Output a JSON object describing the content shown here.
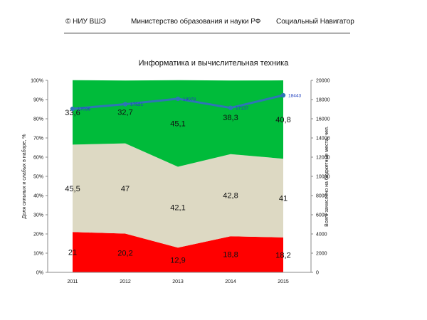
{
  "header": {
    "copyright": "© НИУ ВШЭ",
    "ministry": "Министерство образования и науки РФ",
    "navigator": "Социальный Навигатор"
  },
  "colors": {
    "weak": "#ff0000",
    "middle": "#ddd9c3",
    "strong": "#00bb3a",
    "enrolled": "#2e75b6",
    "enrolled_label": "#1f3fbf"
  },
  "chart_data": {
    "type": "area",
    "title": "Информатика и вычислительная техника",
    "x": [
      "2011",
      "2012",
      "2013",
      "2014",
      "2015"
    ],
    "ylabel_left": "Доля сильных и слабых в наборе, %",
    "ylabel_right": "Всего зачислено на бюджетные места, чел.",
    "yticks_left": [
      "0%",
      "10%",
      "20%",
      "30%",
      "40%",
      "50%",
      "60%",
      "70%",
      "80%",
      "90%",
      "100%"
    ],
    "yticks_right": [
      "0",
      "2000",
      "4000",
      "6000",
      "8000",
      "10000",
      "12000",
      "14000",
      "16000",
      "18000",
      "20000"
    ],
    "ylim_left": [
      0,
      100
    ],
    "ylim_right": [
      0,
      20000
    ],
    "stacked": true,
    "series": [
      {
        "values": [
          21,
          20.2,
          12.9,
          18.8,
          18.2
        ],
        "labels": [
          "21",
          "20,2",
          "12,9",
          "18,8",
          "18,2"
        ],
        "color": "#ff0000"
      },
      {
        "values": [
          45.5,
          47,
          42.1,
          42.8,
          41
        ],
        "labels": [
          "45,5",
          "47",
          "42,1",
          "42,8",
          "41"
        ],
        "color": "#ddd9c3"
      },
      {
        "values": [
          33.6,
          32.7,
          45.1,
          38.3,
          40.8
        ],
        "labels": [
          "33,6",
          "32,7",
          "45,1",
          "38,3",
          "40,8"
        ],
        "color": "#00bb3a"
      }
    ],
    "line_series": {
      "axis": "right",
      "values": [
        17036,
        17521,
        18078,
        17137,
        18443
      ],
      "labels": [
        "17036",
        "17521",
        "18078",
        "17137",
        "18443"
      ],
      "color": "#2e75b6"
    },
    "grid": false,
    "legend": "none"
  }
}
